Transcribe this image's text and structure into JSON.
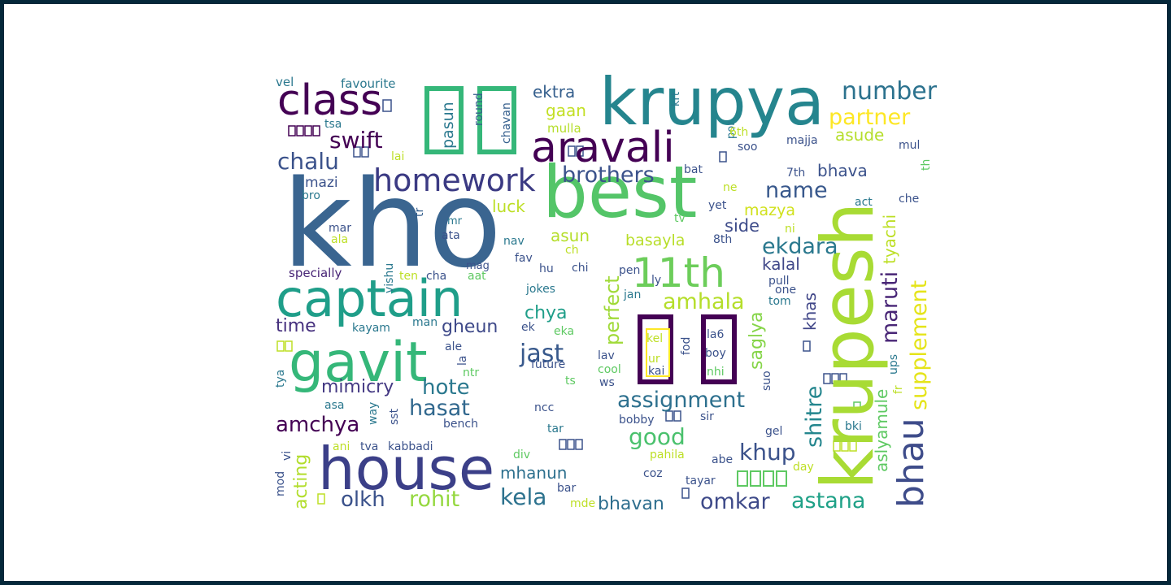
{
  "wordcloud": {
    "words": [
      {
        "text": "kho",
        "color": "#3a6590"
      },
      {
        "text": "krupesh",
        "color": "#a8db34"
      },
      {
        "text": "best",
        "color": "#54c568"
      },
      {
        "text": "krupya",
        "color": "#25858e"
      },
      {
        "text": "captain",
        "color": "#1f9e89"
      },
      {
        "text": "house",
        "color": "#3b3f88"
      },
      {
        "text": "gavit",
        "color": "#35b779"
      },
      {
        "text": "aravali",
        "color": "#440154"
      },
      {
        "text": "class",
        "color": "#440154"
      },
      {
        "text": "11th",
        "color": "#6ccd5a"
      },
      {
        "text": "homework",
        "color": "#3b3a83"
      },
      {
        "text": "bhau",
        "color": "#3e4c8a"
      },
      {
        "text": "supplement",
        "color": "#e5e419"
      },
      {
        "text": "number",
        "color": "#2c728e"
      },
      {
        "text": "partner",
        "color": "#fde725"
      },
      {
        "text": "swift",
        "color": "#440154"
      },
      {
        "text": "chalu",
        "color": "#3b528b"
      },
      {
        "text": "brothers",
        "color": "#3b528b"
      },
      {
        "text": "name",
        "color": "#38588c"
      },
      {
        "text": "ekdara",
        "color": "#2a788e"
      },
      {
        "text": "amhala",
        "color": "#b5de2b"
      },
      {
        "text": "maruti",
        "color": "#482576"
      },
      {
        "text": "assignment",
        "color": "#2d708e"
      },
      {
        "text": "shitre",
        "color": "#24868e"
      },
      {
        "text": "khas",
        "color": "#404688"
      },
      {
        "text": "tyachi",
        "color": "#bddf26"
      },
      {
        "text": "aslyamule",
        "color": "#5ec962"
      },
      {
        "text": "astana",
        "color": "#1fa187"
      },
      {
        "text": "hote",
        "color": "#2a788e"
      },
      {
        "text": "jast",
        "color": "#38598c"
      },
      {
        "text": "hasat",
        "color": "#31688e"
      },
      {
        "text": "amchya",
        "color": "#440154"
      },
      {
        "text": "good",
        "color": "#4ac16d"
      },
      {
        "text": "khup",
        "color": "#3b528b"
      },
      {
        "text": "kela",
        "color": "#2c728e"
      },
      {
        "text": "omkar",
        "color": "#3e4a89"
      },
      {
        "text": "olkh",
        "color": "#3b528b"
      },
      {
        "text": "rohit",
        "color": "#95d840"
      },
      {
        "text": "mimicry",
        "color": "#443983"
      },
      {
        "text": "gheun",
        "color": "#3e4989"
      },
      {
        "text": "perfect",
        "color": "#a0da39"
      },
      {
        "text": "chya",
        "color": "#1f9e89"
      },
      {
        "text": "saglya",
        "color": "#86d549"
      },
      {
        "text": "time",
        "color": "#46307e"
      },
      {
        "text": "acting",
        "color": "#b2dd2d"
      },
      {
        "text": "mhanun",
        "color": "#2d708e"
      },
      {
        "text": "bhavan",
        "color": "#2e6e8e"
      },
      {
        "text": "basayla",
        "color": "#b8de29"
      },
      {
        "text": "kalal",
        "color": "#3f4788"
      },
      {
        "text": "side",
        "color": "#3e4c8a"
      },
      {
        "text": "mazya",
        "color": "#d0e11c"
      },
      {
        "text": "bhava",
        "color": "#3b528b"
      },
      {
        "text": "asude",
        "color": "#b5de2b"
      },
      {
        "text": "gaan",
        "color": "#c2df23"
      },
      {
        "text": "ektra",
        "color": "#355f8d"
      },
      {
        "text": "pasun",
        "color": "#2a788e"
      },
      {
        "text": "luck",
        "color": "#bddf26"
      },
      {
        "text": "asun",
        "color": "#b5de2b"
      },
      {
        "text": "mazi",
        "color": "#3b528b"
      },
      {
        "text": "favourite",
        "color": "#2a788e"
      },
      {
        "text": "vel",
        "color": "#2a788e"
      },
      {
        "text": "round",
        "color": "#355f8d"
      },
      {
        "text": "chavan",
        "color": "#355f8d"
      },
      {
        "text": "mulla",
        "color": "#b5de2b"
      },
      {
        "text": "tsa",
        "color": "#2a788e"
      },
      {
        "text": "lai",
        "color": "#bddf26"
      },
      {
        "text": "bro",
        "color": "#2a788e"
      },
      {
        "text": "mar",
        "color": "#3b528b"
      },
      {
        "text": "ala",
        "color": "#bddf26"
      },
      {
        "text": "tr",
        "color": "#355f8d"
      },
      {
        "text": "mr",
        "color": "#2a788e"
      },
      {
        "text": "ata",
        "color": "#3b528b"
      },
      {
        "text": "vishu",
        "color": "#2a788e"
      },
      {
        "text": "mag",
        "color": "#3b528b"
      },
      {
        "text": "specially",
        "color": "#482576"
      },
      {
        "text": "ten",
        "color": "#bddf26"
      },
      {
        "text": "cha",
        "color": "#3b528b"
      },
      {
        "text": "aat",
        "color": "#5ec962"
      },
      {
        "text": "kayam",
        "color": "#2a788e"
      },
      {
        "text": "man",
        "color": "#2a788e"
      },
      {
        "text": "ale",
        "color": "#3b528b"
      },
      {
        "text": "la",
        "color": "#3b528b"
      },
      {
        "text": "ntr",
        "color": "#5ec962"
      },
      {
        "text": "tya",
        "color": "#2a788e"
      },
      {
        "text": "asa",
        "color": "#2a788e"
      },
      {
        "text": "way",
        "color": "#2a788e"
      },
      {
        "text": "sst",
        "color": "#3b528b"
      },
      {
        "text": "bench",
        "color": "#3b528b"
      },
      {
        "text": "vi",
        "color": "#3b528b"
      },
      {
        "text": "mod",
        "color": "#3b528b"
      },
      {
        "text": "ani",
        "color": "#bddf26"
      },
      {
        "text": "tva",
        "color": "#3b528b"
      },
      {
        "text": "kabbadi",
        "color": "#3b528b"
      },
      {
        "text": "por",
        "color": "#2a788e"
      },
      {
        "text": "krt",
        "color": "#2a788e"
      },
      {
        "text": "6th",
        "color": "#bddf26"
      },
      {
        "text": "soo",
        "color": "#3b528b"
      },
      {
        "text": "majja",
        "color": "#3b528b"
      },
      {
        "text": "mul",
        "color": "#3b528b"
      },
      {
        "text": "th",
        "color": "#5ec962"
      },
      {
        "text": "bat",
        "color": "#3b528b"
      },
      {
        "text": "ne",
        "color": "#bddf26"
      },
      {
        "text": "7th",
        "color": "#3b528b"
      },
      {
        "text": "act",
        "color": "#2a788e"
      },
      {
        "text": "che",
        "color": "#3b528b"
      },
      {
        "text": "yet",
        "color": "#3b528b"
      },
      {
        "text": "tv",
        "color": "#5ec962"
      },
      {
        "text": "ni",
        "color": "#bddf26"
      },
      {
        "text": "8th",
        "color": "#3b528b"
      },
      {
        "text": "nav",
        "color": "#2a788e"
      },
      {
        "text": "ch",
        "color": "#bddf26"
      },
      {
        "text": "fav",
        "color": "#3b528b"
      },
      {
        "text": "hu",
        "color": "#3b528b"
      },
      {
        "text": "chi",
        "color": "#3b528b"
      },
      {
        "text": "pen",
        "color": "#3b528b"
      },
      {
        "text": "ly",
        "color": "#3b528b"
      },
      {
        "text": "jokes",
        "color": "#2a788e"
      },
      {
        "text": "jan",
        "color": "#2a788e"
      },
      {
        "text": "pull",
        "color": "#3b528b"
      },
      {
        "text": "one",
        "color": "#3b528b"
      },
      {
        "text": "tom",
        "color": "#2a788e"
      },
      {
        "text": "ek",
        "color": "#3b528b"
      },
      {
        "text": "eka",
        "color": "#5ec962"
      },
      {
        "text": "kel",
        "color": "#bddf26"
      },
      {
        "text": "fod",
        "color": "#3b528b"
      },
      {
        "text": "la6",
        "color": "#3b528b"
      },
      {
        "text": "boy",
        "color": "#3b528b"
      },
      {
        "text": "ur",
        "color": "#bddf26"
      },
      {
        "text": "kai",
        "color": "#3b528b"
      },
      {
        "text": "nhi",
        "color": "#5ec962"
      },
      {
        "text": "lav",
        "color": "#3b528b"
      },
      {
        "text": "cool",
        "color": "#5ec962"
      },
      {
        "text": "future",
        "color": "#3b528b"
      },
      {
        "text": "ts",
        "color": "#5ec962"
      },
      {
        "text": "ws",
        "color": "#3b528b"
      },
      {
        "text": "suo",
        "color": "#3b528b"
      },
      {
        "text": "ups",
        "color": "#2a788e"
      },
      {
        "text": "fr",
        "color": "#bddf26"
      },
      {
        "text": "ncc",
        "color": "#3b528b"
      },
      {
        "text": "bobby",
        "color": "#3b528b"
      },
      {
        "text": "sir",
        "color": "#3b528b"
      },
      {
        "text": "bki",
        "color": "#2a788e"
      },
      {
        "text": "tar",
        "color": "#2a788e"
      },
      {
        "text": "gel",
        "color": "#3b528b"
      },
      {
        "text": "div",
        "color": "#5ec962"
      },
      {
        "text": "pahila",
        "color": "#bddf26"
      },
      {
        "text": "abe",
        "color": "#3b528b"
      },
      {
        "text": "day",
        "color": "#bddf26"
      },
      {
        "text": "coz",
        "color": "#3b528b"
      },
      {
        "text": "tayar",
        "color": "#3b528b"
      },
      {
        "text": "bar",
        "color": "#3b528b"
      },
      {
        "text": "mde",
        "color": "#bddf26"
      }
    ]
  }
}
